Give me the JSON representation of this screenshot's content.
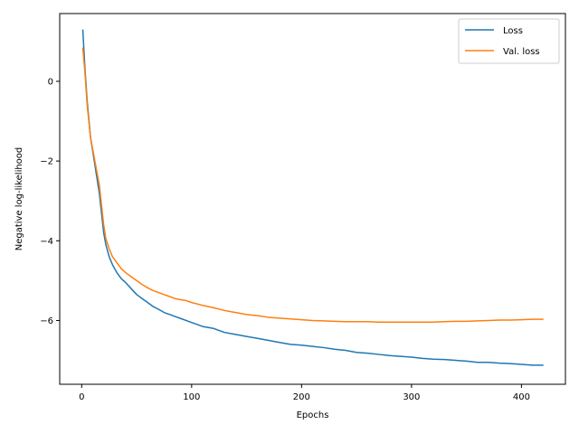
{
  "chart_data": {
    "type": "line",
    "title": "",
    "xlabel": "Epochs",
    "ylabel": "Negative log-likelihood",
    "xlim": [
      -20,
      440
    ],
    "ylim": [
      -7.6,
      1.7
    ],
    "xticks": [
      0,
      100,
      200,
      300,
      400
    ],
    "yticks": [
      0,
      -2,
      -4,
      -6
    ],
    "ytick_labels": [
      "0",
      "−2",
      "−4",
      "−6"
    ],
    "grid": false,
    "legend_position": "top-right",
    "series": [
      {
        "name": "Loss",
        "color": "#1f77b4",
        "x": [
          1,
          3,
          5,
          8,
          12,
          16,
          18,
          20,
          22,
          25,
          28,
          32,
          36,
          40,
          45,
          50,
          55,
          60,
          65,
          70,
          75,
          80,
          85,
          90,
          95,
          100,
          110,
          120,
          130,
          140,
          150,
          160,
          170,
          180,
          190,
          200,
          210,
          220,
          230,
          240,
          250,
          260,
          270,
          280,
          290,
          300,
          310,
          320,
          330,
          340,
          350,
          360,
          370,
          380,
          390,
          400,
          410,
          420
        ],
        "y": [
          1.3,
          0.3,
          -0.5,
          -1.4,
          -2.1,
          -2.8,
          -3.3,
          -3.8,
          -4.1,
          -4.4,
          -4.6,
          -4.8,
          -4.95,
          -5.05,
          -5.2,
          -5.35,
          -5.45,
          -5.55,
          -5.65,
          -5.72,
          -5.8,
          -5.85,
          -5.9,
          -5.95,
          -6.0,
          -6.05,
          -6.15,
          -6.2,
          -6.3,
          -6.35,
          -6.4,
          -6.45,
          -6.5,
          -6.55,
          -6.6,
          -6.62,
          -6.65,
          -6.68,
          -6.72,
          -6.75,
          -6.8,
          -6.82,
          -6.85,
          -6.88,
          -6.9,
          -6.92,
          -6.95,
          -6.97,
          -6.98,
          -7.0,
          -7.02,
          -7.05,
          -7.05,
          -7.07,
          -7.08,
          -7.1,
          -7.12,
          -7.12
        ]
      },
      {
        "name": "Val. loss",
        "color": "#ff7f0e",
        "x": [
          1,
          3,
          5,
          8,
          12,
          16,
          18,
          20,
          22,
          25,
          28,
          32,
          36,
          40,
          45,
          50,
          55,
          60,
          65,
          70,
          75,
          80,
          85,
          90,
          95,
          100,
          110,
          120,
          130,
          140,
          150,
          160,
          170,
          180,
          190,
          200,
          210,
          220,
          230,
          240,
          250,
          260,
          270,
          280,
          290,
          300,
          310,
          320,
          330,
          340,
          350,
          360,
          370,
          380,
          390,
          400,
          410,
          420
        ],
        "y": [
          0.85,
          0.2,
          -0.6,
          -1.4,
          -2.0,
          -2.6,
          -3.1,
          -3.6,
          -3.95,
          -4.2,
          -4.4,
          -4.55,
          -4.7,
          -4.8,
          -4.9,
          -5.0,
          -5.1,
          -5.18,
          -5.25,
          -5.3,
          -5.35,
          -5.4,
          -5.45,
          -5.48,
          -5.5,
          -5.55,
          -5.62,
          -5.68,
          -5.75,
          -5.8,
          -5.85,
          -5.88,
          -5.92,
          -5.94,
          -5.96,
          -5.98,
          -6.0,
          -6.01,
          -6.02,
          -6.03,
          -6.03,
          -6.03,
          -6.04,
          -6.04,
          -6.04,
          -6.04,
          -6.04,
          -6.04,
          -6.03,
          -6.02,
          -6.02,
          -6.01,
          -6.0,
          -5.99,
          -5.99,
          -5.98,
          -5.97,
          -5.97
        ]
      }
    ]
  }
}
